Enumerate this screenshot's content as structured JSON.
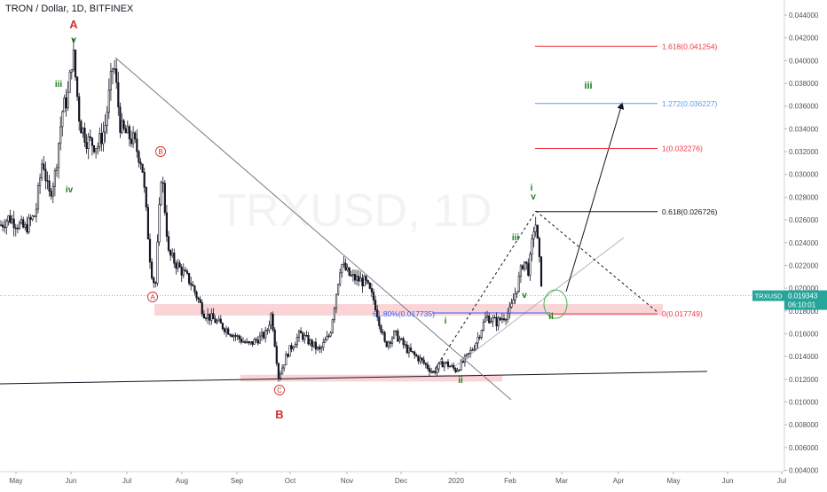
{
  "chart_data": {
    "type": "candlestick",
    "title": "TRON / Dollar, 1D, BITFINEX",
    "watermark": "TRXUSD, 1D",
    "price_axis": {
      "ylim": [
        0.0035,
        0.0448
      ],
      "ticks": [
        "0.044000",
        "0.042000",
        "0.040000",
        "0.038000",
        "0.036000",
        "0.034000",
        "0.032000",
        "0.030000",
        "0.028000",
        "0.026000",
        "0.024000",
        "0.022000",
        "0.020000",
        "0.018000",
        "0.016000",
        "0.014000",
        "0.012000",
        "0.010000",
        "0.008000",
        "0.006000",
        "0.004000"
      ]
    },
    "time_axis": {
      "labels": [
        "May",
        "Jun",
        "Jul",
        "Aug",
        "Sep",
        "Oct",
        "Nov",
        "Dec",
        "2020",
        "Feb",
        "Mar",
        "Apr",
        "May",
        "Jun",
        "Jul"
      ]
    },
    "last_price": {
      "symbol": "TRXUSD",
      "value": "0.019343",
      "countdown": "06:10:01",
      "price": 0.019343,
      "color": "#26a69a"
    },
    "fib_levels": [
      {
        "label": "1.618(0.041254)",
        "price": 0.041254,
        "color": "#f23645"
      },
      {
        "label": "1.272(0.036227)",
        "price": 0.036227,
        "color": "#5b9cf6"
      },
      {
        "label": "1(0.032276)",
        "price": 0.032276,
        "color": "#f23645"
      },
      {
        "label": "0.618(0.026726)",
        "price": 0.026726,
        "color": "#131722"
      },
      {
        "label": "0(0.017749)",
        "price": 0.017749,
        "color": "#f23645"
      }
    ],
    "retrace_label": {
      "label": "61.80%(0.017735)",
      "price": 0.017735,
      "color": "#2962ff"
    },
    "support_zones": [
      {
        "price_low": 0.0176,
        "price_high": 0.0186,
        "color": "#f8c5c8"
      },
      {
        "price_low": 0.0118,
        "price_high": 0.0124,
        "color": "#f8c5c8"
      }
    ],
    "wave_labels": [
      {
        "text": "A",
        "color": "#d32f2f"
      },
      {
        "text": "v",
        "color": "#1b7a1b"
      },
      {
        "text": "iii",
        "color": "#1b7a1b"
      },
      {
        "text": "iv",
        "color": "#1b7a1b"
      },
      {
        "text": "B",
        "color": "#d32f2f"
      },
      {
        "text": "A",
        "color": "#d32f2f"
      },
      {
        "text": "B",
        "color": "#d32f2f"
      },
      {
        "text": "C",
        "color": "#d32f2f"
      },
      {
        "text": "i",
        "color": "#1b7a1b"
      },
      {
        "text": "ii",
        "color": "#1b7a1b"
      },
      {
        "text": "i",
        "color": "#1b7a1b"
      },
      {
        "text": "v",
        "color": "#1b7a1b"
      },
      {
        "text": "iii",
        "color": "#1b7a1b"
      },
      {
        "text": "v",
        "color": "#1b7a1b"
      },
      {
        "text": "ii",
        "color": "#1b7a1b"
      },
      {
        "text": "iii",
        "color": "#1b7a1b"
      }
    ]
  }
}
